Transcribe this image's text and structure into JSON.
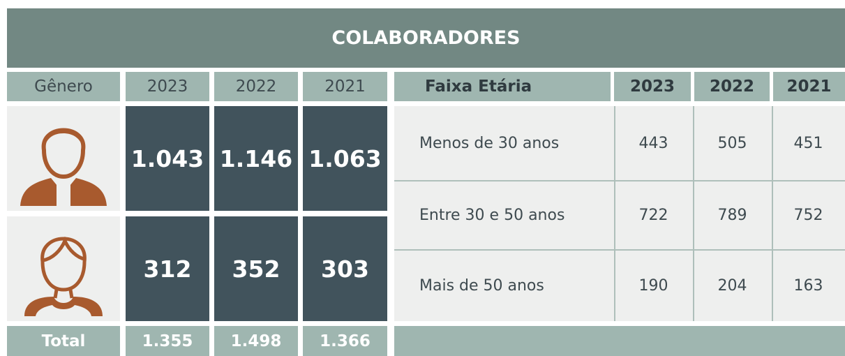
{
  "title": "COLABORADORES",
  "gender_table": {
    "headers": [
      "Gênero",
      "2023",
      "2022",
      "2021"
    ],
    "rows": [
      [
        "1.043",
        "1.146",
        "1.063"
      ],
      [
        "312",
        "352",
        "303"
      ]
    ],
    "total": [
      "Total",
      "1.355",
      "1.498",
      "1.366"
    ]
  },
  "age_table": {
    "headers": [
      "Faixa Etária",
      "2023",
      "2022",
      "2021"
    ],
    "rows": [
      [
        "Menos de 30 anos",
        "443",
        "505",
        "451"
      ],
      [
        "Entre 30 e 50 anos",
        "722",
        "789",
        "752"
      ],
      [
        "Mais de 50 anos",
        "190",
        "204",
        "163"
      ]
    ]
  }
}
